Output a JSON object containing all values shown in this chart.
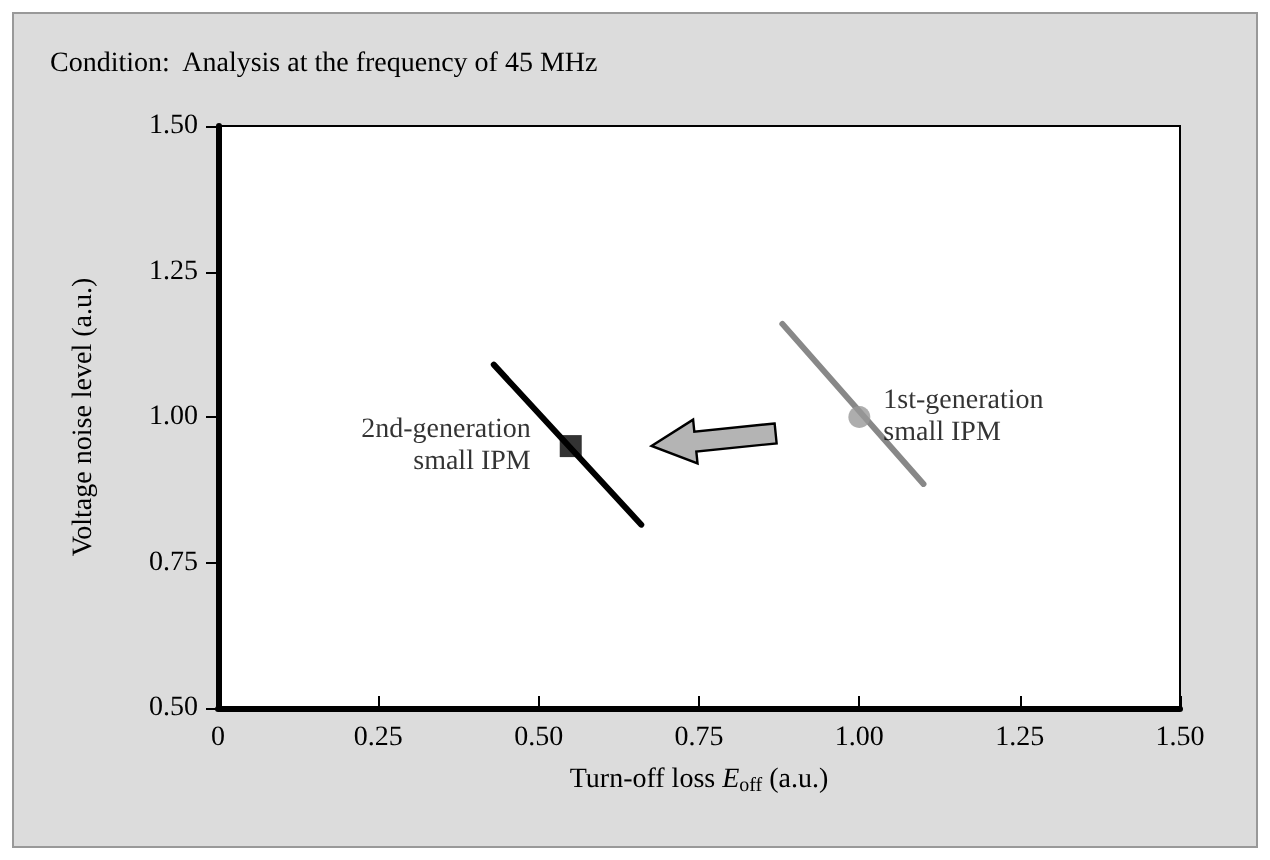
{
  "chart_data": {
    "type": "line",
    "title": "Condition:  Analysis at the frequency of 45 MHz",
    "xlabel": "Turn-off loss E$_{off}$ (a.u.)",
    "ylabel": "Voltage noise level (a.u.)",
    "series": [
      {
        "color": "#888888",
        "x": [
          0.88,
          1.1
        ],
        "values": [
          1.16,
          0.885
        ],
        "marker": "none"
      },
      {
        "type": "scatter",
        "color": "#999999",
        "x": [
          1.0
        ],
        "values": [
          1.0
        ],
        "marker": "circle"
      },
      {
        "color": "#000000",
        "x": [
          0.43,
          0.66
        ],
        "values": [
          1.09,
          0.815
        ],
        "marker": "none"
      },
      {
        "type": "scatter",
        "color": "#000000",
        "x": [
          0.55
        ],
        "values": [
          0.95
        ],
        "marker": "square"
      }
    ],
    "annotations": [
      {
        "text": "1st-generation\nsmall IPM",
        "x": 1.0,
        "y": 1.0
      },
      {
        "text": "2nd-generation\nsmall IPM",
        "x": 0.55,
        "y": 0.95
      }
    ],
    "xlim": [
      0,
      1.5
    ],
    "xticks": [
      0,
      0.25,
      {
        "value": 0.5,
        "label": "0.50"
      },
      0.75,
      {
        "value": 1.0,
        "label": "1.00"
      },
      1.25,
      {
        "value": 1.5,
        "label": "1.50"
      }
    ],
    "ylim": [
      0.5,
      1.5
    ],
    "yticks": [
      {
        "value": 0.5,
        "label": "0.50"
      },
      0.75,
      {
        "value": 1.0,
        "label": "1.00"
      },
      1.25,
      {
        "value": 1.5,
        "label": "1.50"
      }
    ],
    "grid": false
  }
}
